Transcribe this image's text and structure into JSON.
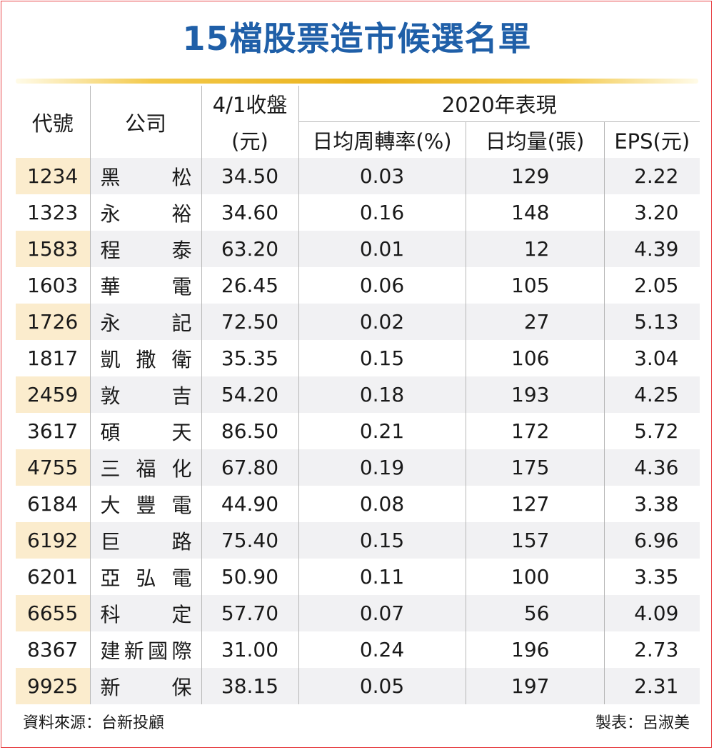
{
  "title": "15檔股票造市候選名單",
  "headers": {
    "code": "代號",
    "company": "公司",
    "close_line1": "4/1收盤",
    "close_line2": "(元)",
    "group": "2020年表現",
    "turnover": "日均周轉率(%)",
    "volume": "日均量(張)",
    "eps": "EPS(元)"
  },
  "rows": [
    {
      "code": "1234",
      "company": [
        "黑",
        "松"
      ],
      "close": "34.50",
      "turnover": "0.03",
      "volume": "129",
      "eps": "2.22"
    },
    {
      "code": "1323",
      "company": [
        "永",
        "裕"
      ],
      "close": "34.60",
      "turnover": "0.16",
      "volume": "148",
      "eps": "3.20"
    },
    {
      "code": "1583",
      "company": [
        "程",
        "泰"
      ],
      "close": "63.20",
      "turnover": "0.01",
      "volume": "12",
      "eps": "4.39"
    },
    {
      "code": "1603",
      "company": [
        "華",
        "電"
      ],
      "close": "26.45",
      "turnover": "0.06",
      "volume": "105",
      "eps": "2.05"
    },
    {
      "code": "1726",
      "company": [
        "永",
        "記"
      ],
      "close": "72.50",
      "turnover": "0.02",
      "volume": "27",
      "eps": "5.13"
    },
    {
      "code": "1817",
      "company": [
        "凱",
        "撒",
        "衛"
      ],
      "close": "35.35",
      "turnover": "0.15",
      "volume": "106",
      "eps": "3.04"
    },
    {
      "code": "2459",
      "company": [
        "敦",
        "吉"
      ],
      "close": "54.20",
      "turnover": "0.18",
      "volume": "193",
      "eps": "4.25"
    },
    {
      "code": "3617",
      "company": [
        "碩",
        "天"
      ],
      "close": "86.50",
      "turnover": "0.21",
      "volume": "172",
      "eps": "5.72"
    },
    {
      "code": "4755",
      "company": [
        "三",
        "福",
        "化"
      ],
      "close": "67.80",
      "turnover": "0.19",
      "volume": "175",
      "eps": "4.36"
    },
    {
      "code": "6184",
      "company": [
        "大",
        "豐",
        "電"
      ],
      "close": "44.90",
      "turnover": "0.08",
      "volume": "127",
      "eps": "3.38"
    },
    {
      "code": "6192",
      "company": [
        "巨",
        "路"
      ],
      "close": "75.40",
      "turnover": "0.15",
      "volume": "157",
      "eps": "6.96"
    },
    {
      "code": "6201",
      "company": [
        "亞",
        "弘",
        "電"
      ],
      "close": "50.90",
      "turnover": "0.11",
      "volume": "100",
      "eps": "3.35"
    },
    {
      "code": "6655",
      "company": [
        "科",
        "定"
      ],
      "close": "57.70",
      "turnover": "0.07",
      "volume": "56",
      "eps": "4.09"
    },
    {
      "code": "8367",
      "company": [
        "建",
        "新",
        "國",
        "際"
      ],
      "close": "31.00",
      "turnover": "0.24",
      "volume": "196",
      "eps": "2.73"
    },
    {
      "code": "9925",
      "company": [
        "新",
        "保"
      ],
      "close": "38.15",
      "turnover": "0.05",
      "volume": "197",
      "eps": "2.31"
    }
  ],
  "footer": {
    "source": "資料來源：台新投顧",
    "maker": "製表：呂淑美"
  },
  "colors": {
    "title": "#1f5fa8",
    "frame": "#e8484b",
    "gold_rule": "#eab21c",
    "code_highlight": "#fbeccd",
    "row_alt": "#f1f1f3"
  },
  "chart_data": {
    "type": "table",
    "title": "15檔股票造市候選名單",
    "columns": [
      "代號",
      "公司",
      "4/1收盤(元)",
      "日均周轉率(%)",
      "日均量(張)",
      "EPS(元)"
    ],
    "column_group": {
      "label": "2020年表現",
      "spans": [
        "日均周轉率(%)",
        "日均量(張)",
        "EPS(元)"
      ]
    },
    "rows": [
      [
        "1234",
        "黑松",
        34.5,
        0.03,
        129,
        2.22
      ],
      [
        "1323",
        "永裕",
        34.6,
        0.16,
        148,
        3.2
      ],
      [
        "1583",
        "程泰",
        63.2,
        0.01,
        12,
        4.39
      ],
      [
        "1603",
        "華電",
        26.45,
        0.06,
        105,
        2.05
      ],
      [
        "1726",
        "永記",
        72.5,
        0.02,
        27,
        5.13
      ],
      [
        "1817",
        "凱撒衛",
        35.35,
        0.15,
        106,
        3.04
      ],
      [
        "2459",
        "敦吉",
        54.2,
        0.18,
        193,
        4.25
      ],
      [
        "3617",
        "碩天",
        86.5,
        0.21,
        172,
        5.72
      ],
      [
        "4755",
        "三福化",
        67.8,
        0.19,
        175,
        4.36
      ],
      [
        "6184",
        "大豐電",
        44.9,
        0.08,
        127,
        3.38
      ],
      [
        "6192",
        "巨路",
        75.4,
        0.15,
        157,
        6.96
      ],
      [
        "6201",
        "亞弘電",
        50.9,
        0.11,
        100,
        3.35
      ],
      [
        "6655",
        "科定",
        57.7,
        0.07,
        56,
        4.09
      ],
      [
        "8367",
        "建新國際",
        31.0,
        0.24,
        196,
        2.73
      ],
      [
        "9925",
        "新保",
        38.15,
        0.05,
        197,
        2.31
      ]
    ]
  }
}
